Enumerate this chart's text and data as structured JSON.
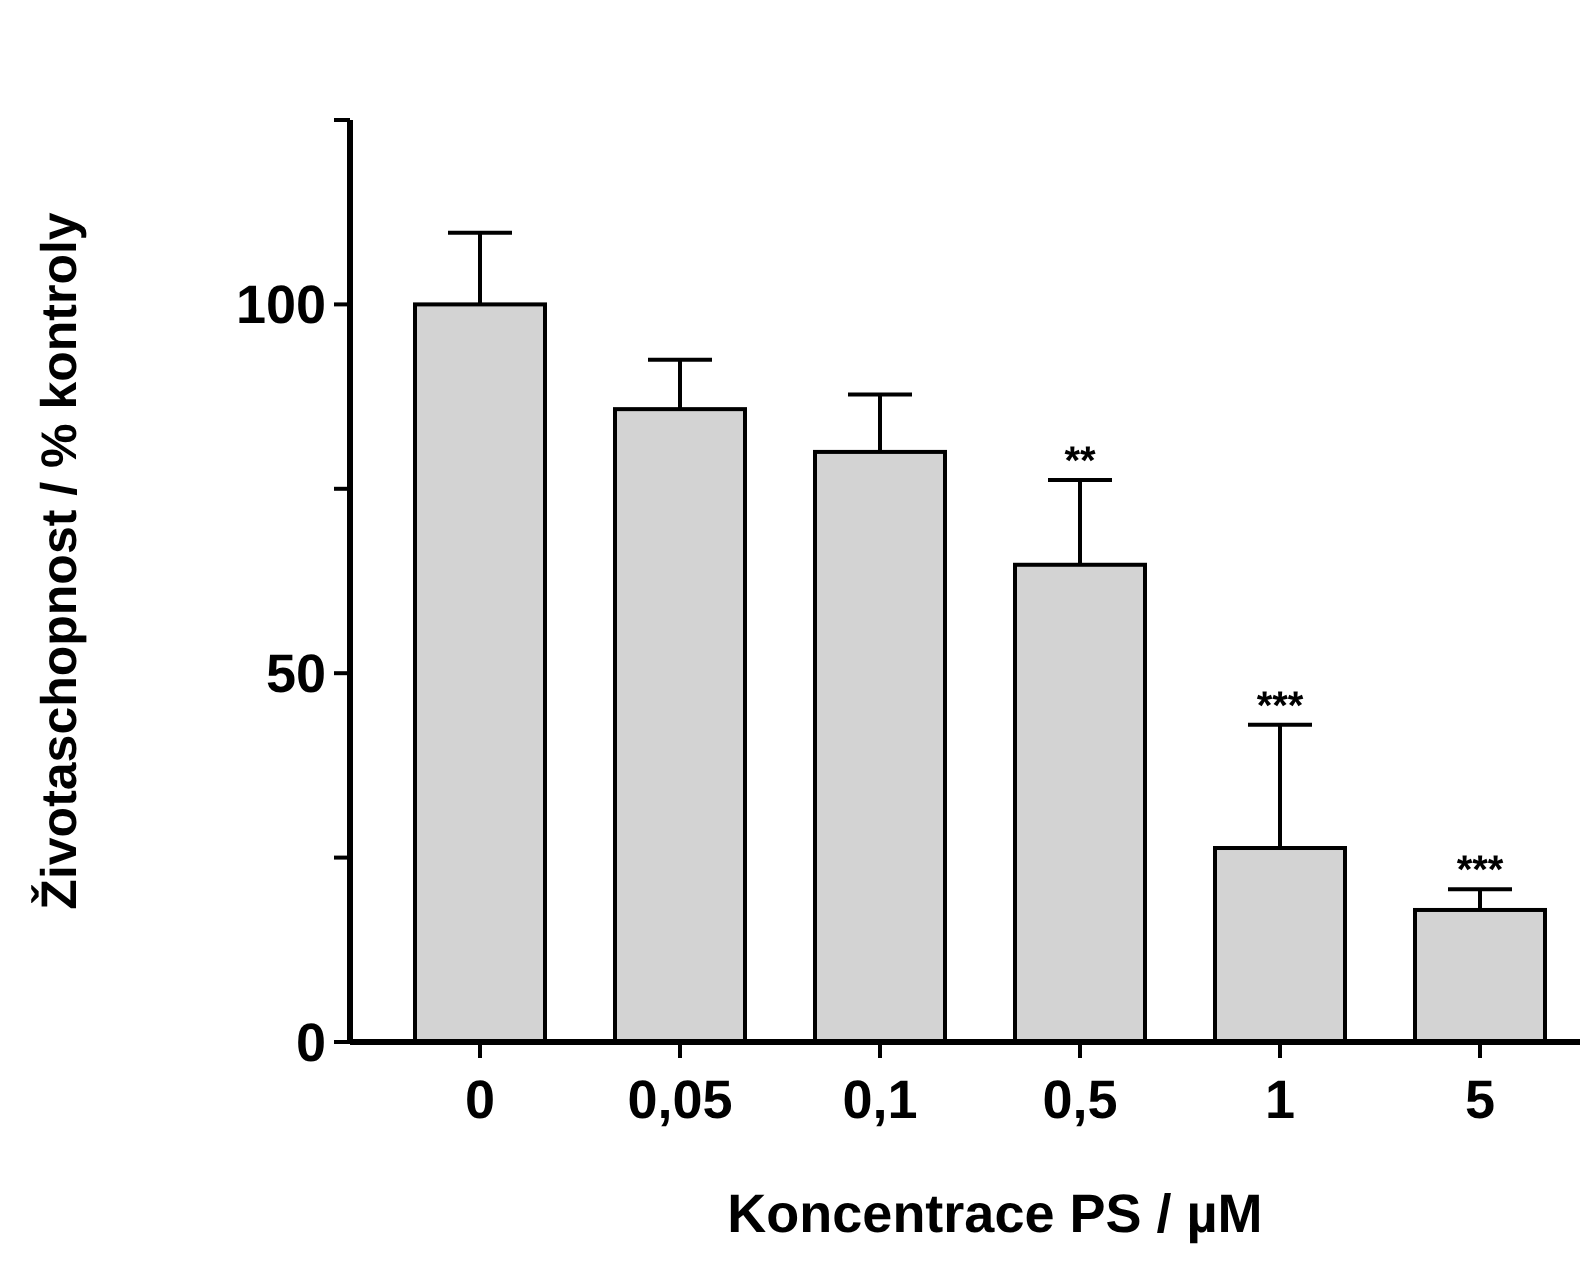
{
  "chart_data": {
    "type": "bar",
    "xlabel": "Koncentrace PS / µM",
    "ylabel": "Životaschopnost  / % kontroly",
    "categories": [
      "0",
      "0,05",
      "0,1",
      "0,5",
      "1",
      "5"
    ],
    "values": [
      100,
      85.8,
      80,
      64.7,
      26.3,
      17.9
    ],
    "errors": [
      9.7,
      6.7,
      7.8,
      11.5,
      16.7,
      2.8
    ],
    "color": "#d3d3d3",
    "ylim": [
      0,
      125
    ],
    "yticks": [
      0,
      {
        "value": 25,
        "label": null
      },
      50,
      {
        "value": 75,
        "label": null
      },
      100,
      {
        "value": 125,
        "label": null
      }
    ],
    "grid": false,
    "annotations": [
      {
        "text": "**",
        "x": "0,5",
        "y": 76.2
      },
      {
        "text": "***",
        "x": "1",
        "y": 43
      },
      {
        "text": "***",
        "x": "5",
        "y": 20.7
      }
    ]
  }
}
